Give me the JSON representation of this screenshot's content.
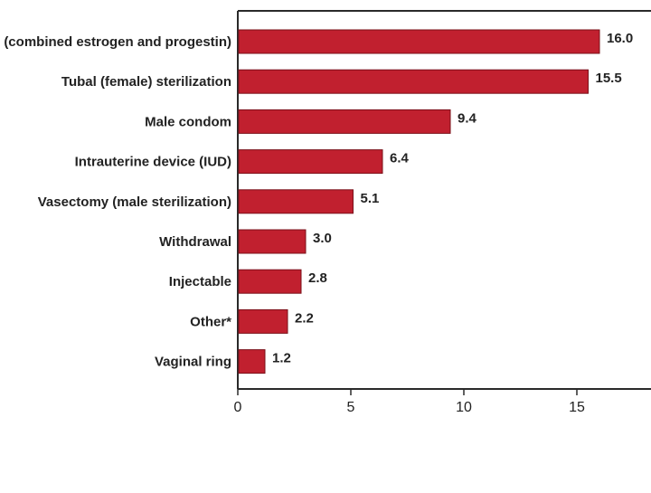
{
  "chart_data": {
    "type": "bar",
    "orientation": "horizontal",
    "categories": [
      "Pill (combined estrogen and progestin)",
      "Tubal (female) sterilization",
      "Male condom",
      "Intrauterine device (IUD)",
      "Vasectomy (male sterilization)",
      "Withdrawal",
      "Injectable",
      "Other*",
      "Vaginal ring"
    ],
    "values": [
      16.0,
      15.5,
      9.4,
      6.4,
      5.1,
      3.0,
      2.8,
      2.2,
      1.2
    ],
    "value_labels": [
      "16.0",
      "15.5",
      "9.4",
      "6.4",
      "5.1",
      "3.0",
      "2.8",
      "2.2",
      "1.2"
    ],
    "xlim": [
      0,
      18.2
    ],
    "xticks": [
      0,
      5,
      10,
      15
    ],
    "xtick_labels": [
      "0",
      "5",
      "10",
      "15"
    ],
    "bar_color": "#c1202f",
    "bar_edge_color": "#7a1019",
    "grid": false,
    "legend": "none"
  }
}
